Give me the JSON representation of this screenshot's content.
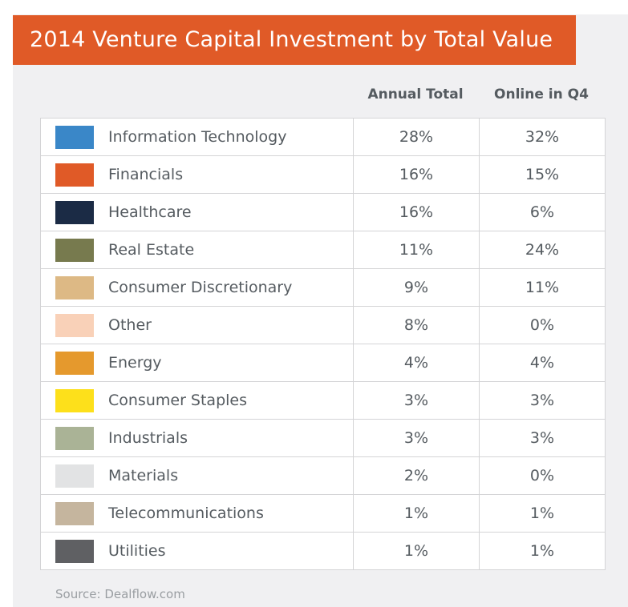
{
  "chart_data": {
    "type": "table",
    "title": "2014 Venture Capital Investment by Total Value",
    "columns": [
      "Annual Total",
      "Online in Q4"
    ],
    "rows": [
      {
        "category": "Information Technology",
        "color": "#3a87c8",
        "annual_total": "28%",
        "online_q4": "32%"
      },
      {
        "category": "Financials",
        "color": "#e05a27",
        "annual_total": "16%",
        "online_q4": "15%"
      },
      {
        "category": "Healthcare",
        "color": "#1b2b45",
        "annual_total": "16%",
        "online_q4": "6%"
      },
      {
        "category": "Real Estate",
        "color": "#777a4e",
        "annual_total": "11%",
        "online_q4": "24%"
      },
      {
        "category": "Consumer Discretionary",
        "color": "#ddb985",
        "annual_total": "9%",
        "online_q4": "11%"
      },
      {
        "category": "Other",
        "color": "#f9d1b8",
        "annual_total": "8%",
        "online_q4": "0%"
      },
      {
        "category": "Energy",
        "color": "#e5992d",
        "annual_total": "4%",
        "online_q4": "4%"
      },
      {
        "category": "Consumer Staples",
        "color": "#fde01b",
        "annual_total": "3%",
        "online_q4": "3%"
      },
      {
        "category": "Industrials",
        "color": "#aab396",
        "annual_total": "3%",
        "online_q4": "3%"
      },
      {
        "category": "Materials",
        "color": "#e2e3e4",
        "annual_total": "2%",
        "online_q4": "0%"
      },
      {
        "category": "Telecommunications",
        "color": "#c5b59e",
        "annual_total": "1%",
        "online_q4": "1%"
      },
      {
        "category": "Utilities",
        "color": "#5f6063",
        "annual_total": "1%",
        "online_q4": "1%"
      }
    ],
    "source": "Source: Dealflow.com"
  }
}
